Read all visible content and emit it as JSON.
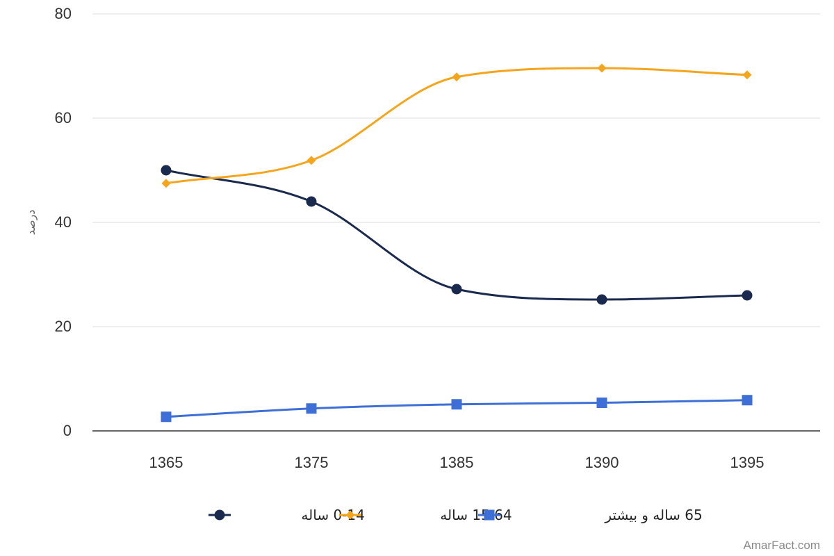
{
  "chart_data": {
    "type": "line",
    "x": [
      "1365",
      "1375",
      "1385",
      "1390",
      "1395"
    ],
    "ylabel": "درصد",
    "ylim": [
      0,
      80
    ],
    "yticks": [
      0,
      20,
      40,
      60,
      80
    ],
    "grid": true,
    "legend_position": "bottom",
    "series": [
      {
        "name": "0-14 ساله",
        "values": [
          50,
          44,
          27.2,
          25.2,
          26
        ],
        "color": "#1a2a4f",
        "marker": "circle"
      },
      {
        "name": "15.64 ساله",
        "values": [
          47.5,
          51.9,
          67.9,
          69.6,
          68.3
        ],
        "color": "#f4a51c",
        "marker": "diamond"
      },
      {
        "name": "65 ساله و بیشتر",
        "values": [
          2.7,
          4.3,
          5.1,
          5.4,
          5.9
        ],
        "color": "#3d6fd6",
        "marker": "square"
      }
    ]
  },
  "watermark": "AmarFact.com"
}
